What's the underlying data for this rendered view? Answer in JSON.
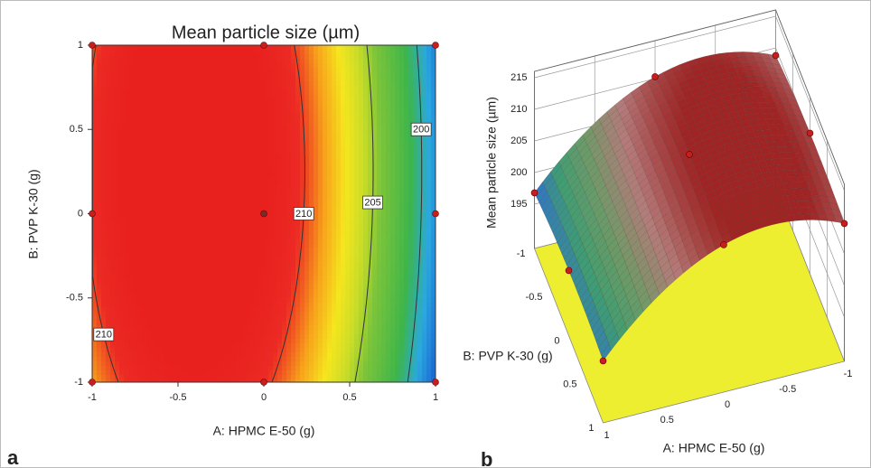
{
  "chart_data": [
    {
      "type": "contour",
      "title": "Mean particle size (µm)",
      "panel_label": "a",
      "x_label": "A: HPMC E-50 (g)",
      "y_label": "B: PVP K-30 (g)",
      "xlim": [
        -1,
        1
      ],
      "ylim": [
        -1,
        1
      ],
      "xticks": [
        -1,
        -0.5,
        0,
        0.5,
        1
      ],
      "yticks": [
        -1,
        -0.5,
        0,
        0.5,
        1
      ],
      "a": [
        -1,
        0,
        1
      ],
      "b": [
        -1,
        0,
        1
      ],
      "z": [
        [
          208.8,
          210.3,
          196.8
        ],
        [
          210.3,
          211.8,
          198.3
        ],
        [
          209.8,
          211.3,
          197.8
        ]
      ],
      "contour_levels": [
        200,
        205,
        210
      ]
    },
    {
      "type": "surface",
      "panel_label": "b",
      "x_label": "A: HPMC E-50 (g)",
      "y_label": "B: PVP K-30 (g)",
      "z_label": "Mean particle size (µm)",
      "xlim": [
        -1,
        1
      ],
      "ylim": [
        -1,
        1
      ],
      "zlim": [
        188,
        216
      ],
      "xticks": [
        1,
        0.5,
        0,
        -0.5,
        -1
      ],
      "yticks": [
        -1,
        -0.5,
        0,
        0.5,
        1
      ],
      "zticks": [
        195,
        200,
        205,
        210,
        215
      ],
      "a": [
        -1,
        0,
        1
      ],
      "b": [
        -1,
        0,
        1
      ],
      "z": [
        [
          208.8,
          210.3,
          196.8
        ],
        [
          210.3,
          211.8,
          198.3
        ],
        [
          209.8,
          211.3,
          197.8
        ]
      ]
    }
  ]
}
